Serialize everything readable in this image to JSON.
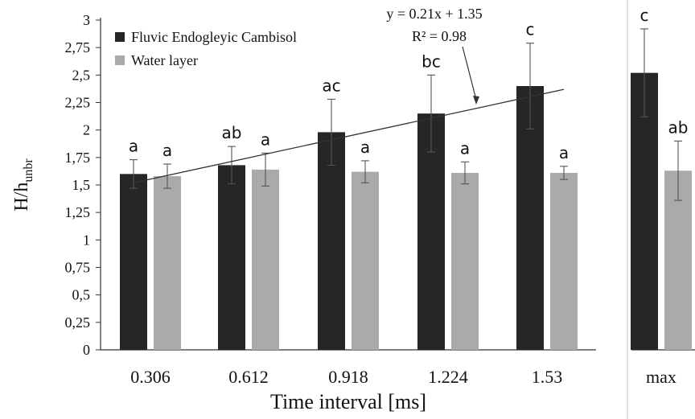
{
  "chart_data": {
    "type": "bar",
    "xlabel": "Time interval [ms]",
    "ylabel_main": "H/h",
    "ylabel_sub": "unbr",
    "ylim": [
      0,
      3
    ],
    "yticks": [
      "0",
      "0,25",
      "0,5",
      "0,75",
      "1",
      "1,25",
      "1,5",
      "1,75",
      "2",
      "2,25",
      "2,5",
      "2,75",
      "3"
    ],
    "grid": false,
    "legend_position": "top-left",
    "colors": {
      "series1": "#262626",
      "series2": "#aaaaaa",
      "errorbar": "#555555",
      "trend": "#333333"
    },
    "categories": [
      "0.306",
      "0.612",
      "0.918",
      "1.224",
      "1.53",
      "max"
    ],
    "series": [
      {
        "name": "Fluvic Endogleyic Cambisol",
        "values": [
          1.6,
          1.68,
          1.98,
          2.15,
          2.4,
          2.52
        ],
        "errors": [
          0.13,
          0.17,
          0.3,
          0.35,
          0.39,
          0.4
        ],
        "labels": [
          "a",
          "ab",
          "ac",
          "bc",
          "c",
          "c"
        ]
      },
      {
        "name": "Water layer",
        "values": [
          1.58,
          1.64,
          1.62,
          1.61,
          1.61,
          1.63
        ],
        "errors": [
          0.11,
          0.15,
          0.1,
          0.1,
          0.06,
          0.27
        ],
        "labels": [
          "a",
          "a",
          "a",
          "a",
          "a",
          "ab"
        ]
      }
    ],
    "trendline": {
      "equation": "y = 0.21x + 1.35",
      "r2": "R² = 0.98",
      "x_start": "0.306",
      "x_end": "1.53"
    }
  }
}
